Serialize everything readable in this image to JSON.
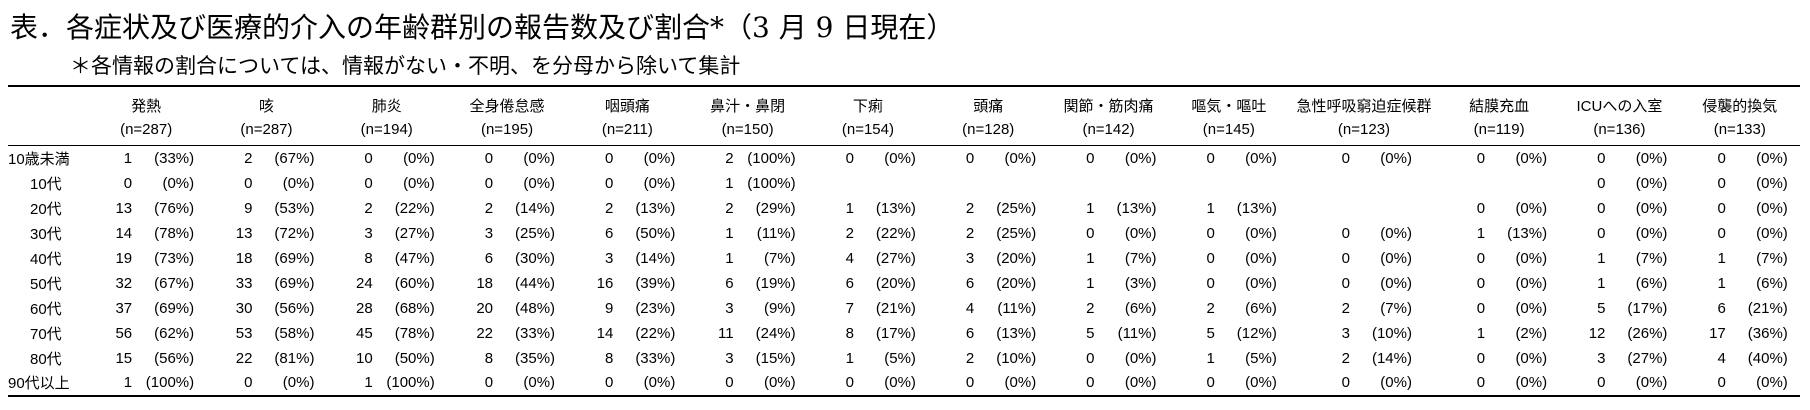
{
  "title": "表．各症状及び医療的介入の年齢群別の報告数及び割合*（3 月 9 日現在）",
  "note": "＊各情報の割合については、情報がない・不明、を分母から除いて集計",
  "columns": [
    {
      "label": "発熱",
      "n": "(n=287)"
    },
    {
      "label": "咳",
      "n": "(n=287)"
    },
    {
      "label": "肺炎",
      "n": "(n=194)"
    },
    {
      "label": "全身倦怠感",
      "n": "(n=195)"
    },
    {
      "label": "咽頭痛",
      "n": "(n=211)"
    },
    {
      "label": "鼻汁・鼻閉",
      "n": "(n=150)"
    },
    {
      "label": "下痢",
      "n": "(n=154)"
    },
    {
      "label": "頭痛",
      "n": "(n=128)"
    },
    {
      "label": "関節・筋肉痛",
      "n": "(n=142)"
    },
    {
      "label": "嘔気・嘔吐",
      "n": "(n=145)"
    },
    {
      "label": "急性呼吸窮迫症候群",
      "n": "(n=123)"
    },
    {
      "label": "結膜充血",
      "n": "(n=119)"
    },
    {
      "label": "ICUへの入室",
      "n": "(n=136)"
    },
    {
      "label": "侵襲的換気",
      "n": "(n=133)"
    }
  ],
  "rows": [
    {
      "age": "10歳未満",
      "cells": [
        [
          "1",
          "(33%)"
        ],
        [
          "2",
          "(67%)"
        ],
        [
          "0",
          "(0%)"
        ],
        [
          "0",
          "(0%)"
        ],
        [
          "0",
          "(0%)"
        ],
        [
          "2",
          "(100%)"
        ],
        [
          "0",
          "(0%)"
        ],
        [
          "0",
          "(0%)"
        ],
        [
          "0",
          "(0%)"
        ],
        [
          "0",
          "(0%)"
        ],
        [
          "0",
          "(0%)"
        ],
        [
          "0",
          "(0%)"
        ],
        [
          "0",
          "(0%)"
        ],
        [
          "0",
          "(0%)"
        ]
      ]
    },
    {
      "age": "10代",
      "cells": [
        [
          "0",
          "(0%)"
        ],
        [
          "0",
          "(0%)"
        ],
        [
          "0",
          "(0%)"
        ],
        [
          "0",
          "(0%)"
        ],
        [
          "0",
          "(0%)"
        ],
        [
          "1",
          "(100%)"
        ],
        [
          "",
          ""
        ],
        [
          "",
          ""
        ],
        [
          "",
          ""
        ],
        [
          "",
          ""
        ],
        [
          "",
          ""
        ],
        [
          "",
          ""
        ],
        [
          "0",
          "(0%)"
        ],
        [
          "0",
          "(0%)"
        ]
      ]
    },
    {
      "age": "20代",
      "cells": [
        [
          "13",
          "(76%)"
        ],
        [
          "9",
          "(53%)"
        ],
        [
          "2",
          "(22%)"
        ],
        [
          "2",
          "(14%)"
        ],
        [
          "2",
          "(13%)"
        ],
        [
          "2",
          "(29%)"
        ],
        [
          "1",
          "(13%)"
        ],
        [
          "2",
          "(25%)"
        ],
        [
          "1",
          "(13%)"
        ],
        [
          "1",
          "(13%)"
        ],
        [
          "",
          ""
        ],
        [
          "0",
          "(0%)"
        ],
        [
          "0",
          "(0%)"
        ],
        [
          "0",
          "(0%)"
        ]
      ]
    },
    {
      "age": "30代",
      "cells": [
        [
          "14",
          "(78%)"
        ],
        [
          "13",
          "(72%)"
        ],
        [
          "3",
          "(27%)"
        ],
        [
          "3",
          "(25%)"
        ],
        [
          "6",
          "(50%)"
        ],
        [
          "1",
          "(11%)"
        ],
        [
          "2",
          "(22%)"
        ],
        [
          "2",
          "(25%)"
        ],
        [
          "0",
          "(0%)"
        ],
        [
          "0",
          "(0%)"
        ],
        [
          "0",
          "(0%)"
        ],
        [
          "1",
          "(13%)"
        ],
        [
          "0",
          "(0%)"
        ],
        [
          "0",
          "(0%)"
        ]
      ]
    },
    {
      "age": "40代",
      "cells": [
        [
          "19",
          "(73%)"
        ],
        [
          "18",
          "(69%)"
        ],
        [
          "8",
          "(47%)"
        ],
        [
          "6",
          "(30%)"
        ],
        [
          "3",
          "(14%)"
        ],
        [
          "1",
          "(7%)"
        ],
        [
          "4",
          "(27%)"
        ],
        [
          "3",
          "(20%)"
        ],
        [
          "1",
          "(7%)"
        ],
        [
          "0",
          "(0%)"
        ],
        [
          "0",
          "(0%)"
        ],
        [
          "0",
          "(0%)"
        ],
        [
          "1",
          "(7%)"
        ],
        [
          "1",
          "(7%)"
        ]
      ]
    },
    {
      "age": "50代",
      "cells": [
        [
          "32",
          "(67%)"
        ],
        [
          "33",
          "(69%)"
        ],
        [
          "24",
          "(60%)"
        ],
        [
          "18",
          "(44%)"
        ],
        [
          "16",
          "(39%)"
        ],
        [
          "6",
          "(19%)"
        ],
        [
          "6",
          "(20%)"
        ],
        [
          "6",
          "(20%)"
        ],
        [
          "1",
          "(3%)"
        ],
        [
          "0",
          "(0%)"
        ],
        [
          "0",
          "(0%)"
        ],
        [
          "0",
          "(0%)"
        ],
        [
          "1",
          "(6%)"
        ],
        [
          "1",
          "(6%)"
        ]
      ]
    },
    {
      "age": "60代",
      "cells": [
        [
          "37",
          "(69%)"
        ],
        [
          "30",
          "(56%)"
        ],
        [
          "28",
          "(68%)"
        ],
        [
          "20",
          "(48%)"
        ],
        [
          "9",
          "(23%)"
        ],
        [
          "3",
          "(9%)"
        ],
        [
          "7",
          "(21%)"
        ],
        [
          "4",
          "(11%)"
        ],
        [
          "2",
          "(6%)"
        ],
        [
          "2",
          "(6%)"
        ],
        [
          "2",
          "(7%)"
        ],
        [
          "0",
          "(0%)"
        ],
        [
          "5",
          "(17%)"
        ],
        [
          "6",
          "(21%)"
        ]
      ]
    },
    {
      "age": "70代",
      "cells": [
        [
          "56",
          "(62%)"
        ],
        [
          "53",
          "(58%)"
        ],
        [
          "45",
          "(78%)"
        ],
        [
          "22",
          "(33%)"
        ],
        [
          "14",
          "(22%)"
        ],
        [
          "11",
          "(24%)"
        ],
        [
          "8",
          "(17%)"
        ],
        [
          "6",
          "(13%)"
        ],
        [
          "5",
          "(11%)"
        ],
        [
          "5",
          "(12%)"
        ],
        [
          "3",
          "(10%)"
        ],
        [
          "1",
          "(2%)"
        ],
        [
          "12",
          "(26%)"
        ],
        [
          "17",
          "(36%)"
        ]
      ]
    },
    {
      "age": "80代",
      "cells": [
        [
          "15",
          "(56%)"
        ],
        [
          "22",
          "(81%)"
        ],
        [
          "10",
          "(50%)"
        ],
        [
          "8",
          "(35%)"
        ],
        [
          "8",
          "(33%)"
        ],
        [
          "3",
          "(15%)"
        ],
        [
          "1",
          "(5%)"
        ],
        [
          "2",
          "(10%)"
        ],
        [
          "0",
          "(0%)"
        ],
        [
          "1",
          "(5%)"
        ],
        [
          "2",
          "(14%)"
        ],
        [
          "0",
          "(0%)"
        ],
        [
          "3",
          "(27%)"
        ],
        [
          "4",
          "(40%)"
        ]
      ]
    },
    {
      "age": "90代以上",
      "cells": [
        [
          "1",
          "(100%)"
        ],
        [
          "0",
          "(0%)"
        ],
        [
          "1",
          "(100%)"
        ],
        [
          "0",
          "(0%)"
        ],
        [
          "0",
          "(0%)"
        ],
        [
          "0",
          "(0%)"
        ],
        [
          "0",
          "(0%)"
        ],
        [
          "0",
          "(0%)"
        ],
        [
          "0",
          "(0%)"
        ],
        [
          "0",
          "(0%)"
        ],
        [
          "0",
          "(0%)"
        ],
        [
          "0",
          "(0%)"
        ],
        [
          "0",
          "(0%)"
        ],
        [
          "0",
          "(0%)"
        ]
      ]
    }
  ]
}
